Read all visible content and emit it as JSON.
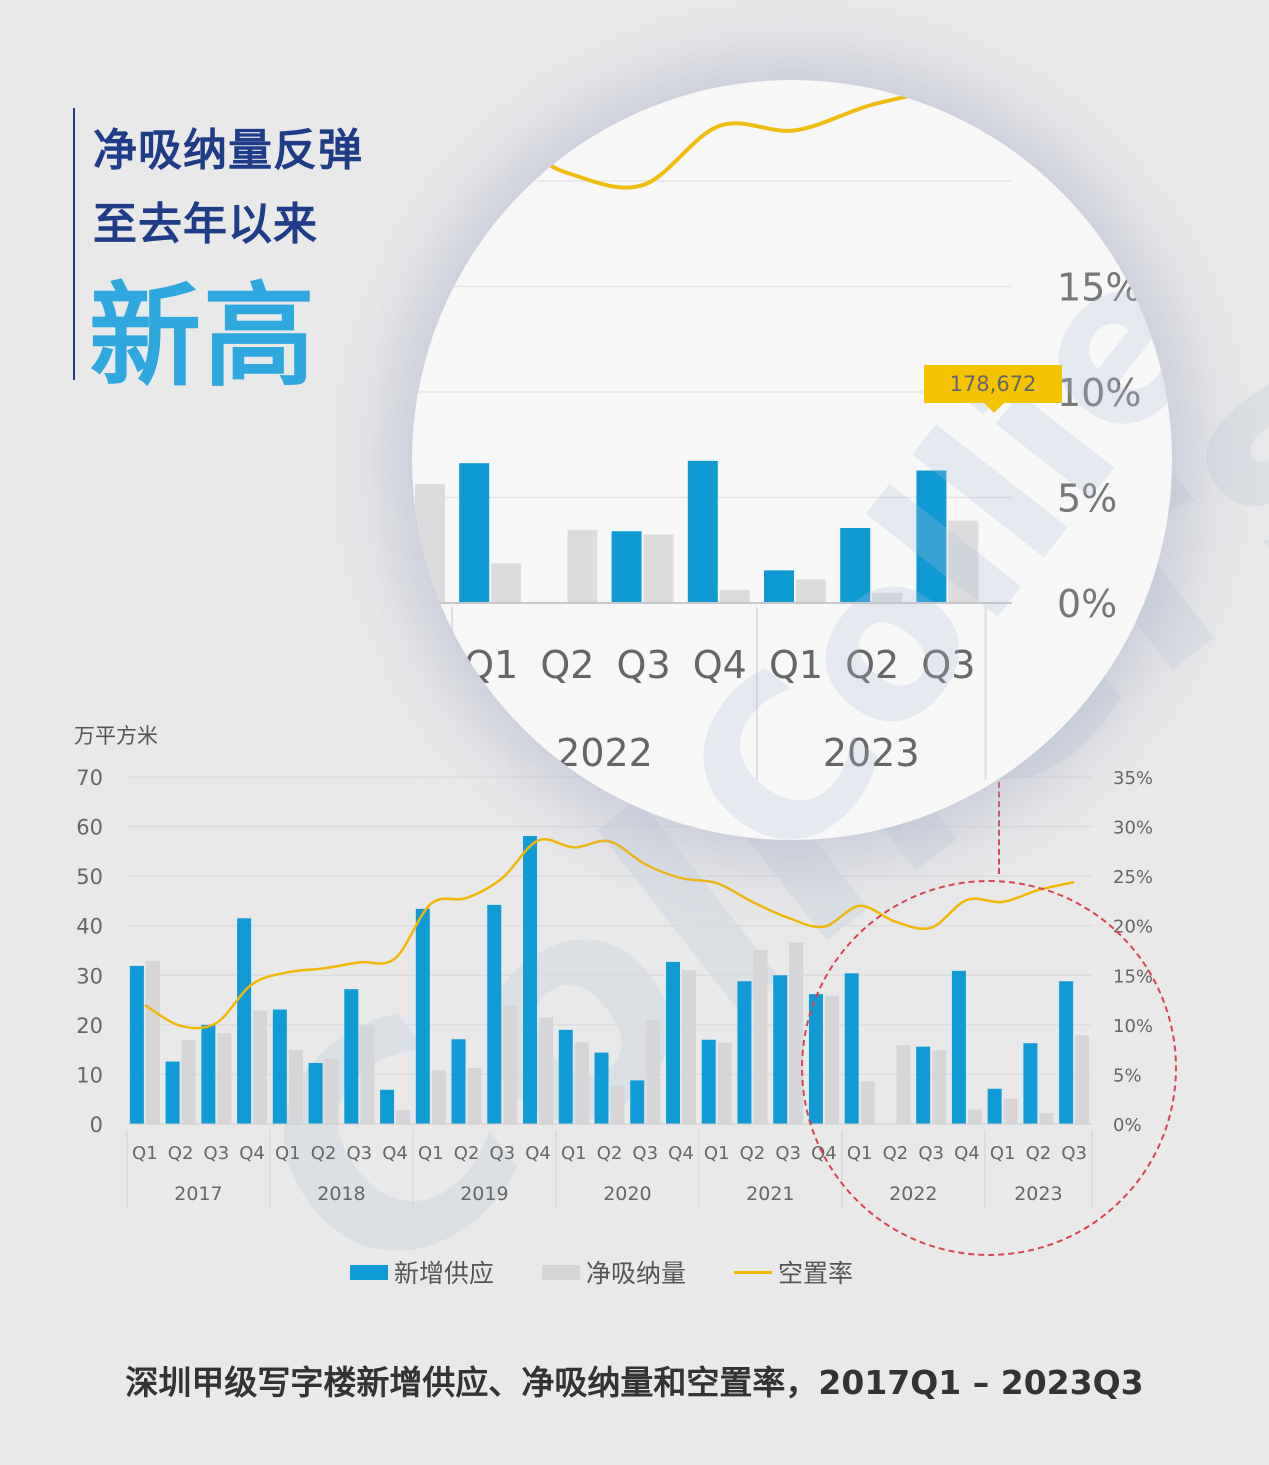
{
  "headline": {
    "line1": "净吸纳量反弹",
    "line2": "至去年以来",
    "big": "新高"
  },
  "watermark": "Colliers",
  "colors": {
    "supply": "#0e9bd6",
    "absorption": "#d6d6d8",
    "vacancy": "#f2b705",
    "headline_dark": "#1f3c88",
    "headline_light": "#2fa7df",
    "highlight_dash": "#d64550"
  },
  "chart_data": {
    "type": "bar",
    "y_unit": "万平方米",
    "ylim": [
      0,
      70
    ],
    "y_ticks": [
      "0",
      "10",
      "20",
      "30",
      "40",
      "50",
      "60",
      "70"
    ],
    "y2lim": [
      0,
      35
    ],
    "y2_ticks": [
      "0%",
      "5%",
      "10%",
      "15%",
      "20%",
      "25%",
      "30%",
      "35%"
    ],
    "quarters": [
      "Q1",
      "Q2",
      "Q3",
      "Q4",
      "Q1",
      "Q2",
      "Q3",
      "Q4",
      "Q1",
      "Q2",
      "Q3",
      "Q4",
      "Q1",
      "Q2",
      "Q3",
      "Q4",
      "Q1",
      "Q2",
      "Q3",
      "Q4",
      "Q1",
      "Q2",
      "Q3",
      "Q4",
      "Q1",
      "Q2",
      "Q3"
    ],
    "years": [
      "2017",
      "2018",
      "2019",
      "2020",
      "2021",
      "2022",
      "2023"
    ],
    "grid": true,
    "legend_position": "bottom",
    "series": [
      {
        "name": "新增供应",
        "type": "bar",
        "values": [
          31.9,
          12.6,
          20.0,
          41.5,
          23.1,
          12.3,
          27.2,
          6.9,
          43.4,
          17.1,
          44.2,
          58.1,
          19.0,
          14.4,
          8.8,
          32.7,
          17.0,
          28.8,
          30.0,
          26.2,
          30.4,
          0,
          15.6,
          30.9,
          7.1,
          16.3,
          28.8
        ]
      },
      {
        "name": "净吸纳量",
        "type": "bar",
        "values": [
          32.9,
          16.9,
          18.3,
          22.9,
          14.9,
          13.1,
          19.9,
          2.8,
          10.8,
          11.3,
          23.9,
          21.5,
          16.5,
          7.7,
          21.0,
          31.0,
          16.4,
          35.1,
          36.6,
          25.9,
          8.6,
          15.9,
          14.9,
          2.9,
          5.1,
          2.2,
          17.9
        ]
      },
      {
        "name": "空置率",
        "type": "line",
        "axis": "right",
        "values": [
          12.0,
          9.9,
          10.2,
          14.1,
          15.3,
          15.7,
          16.3,
          16.7,
          22.2,
          22.8,
          24.8,
          28.6,
          27.9,
          28.5,
          26.2,
          24.8,
          24.3,
          22.4,
          20.8,
          19.9,
          22.0,
          20.4,
          19.8,
          22.6,
          22.4,
          23.6,
          24.4
        ]
      }
    ],
    "zoom": {
      "quarters": [
        "Q1",
        "Q2",
        "Q3",
        "Q4",
        "Q1",
        "Q2",
        "Q3"
      ],
      "years": [
        "2022",
        "2023"
      ],
      "y2_ticks": [
        "0%",
        "5%",
        "10%",
        "15%"
      ],
      "callout": "178,672"
    },
    "caption": "深圳甲级写字楼新增供应、净吸纳量和空置率，2017Q1 – 2023Q3"
  }
}
